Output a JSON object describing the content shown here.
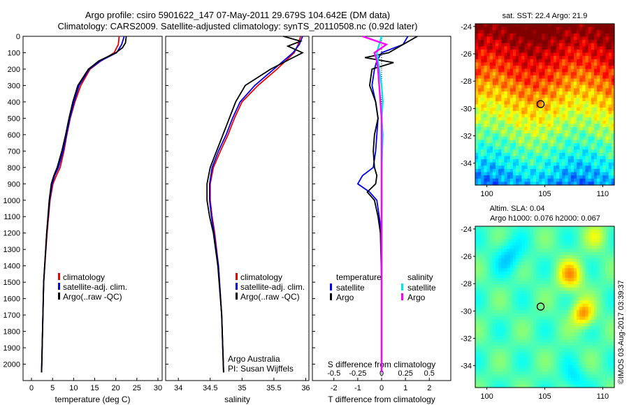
{
  "header": {
    "title_line1": "Argo profile: csiro 5901622_147 07-May-2011 29.679S 104.642E (DM data)",
    "title_line2": "Climatology: CARS2009. Satellite-adjusted climatology: synTS_20110508.nc (0.92d later)"
  },
  "chart_data": [
    {
      "type": "line",
      "xlabel": "temperature (deg C)",
      "xlim": [
        -2,
        31
      ],
      "ylim": [
        2100,
        0
      ],
      "xticks": [
        0,
        5,
        10,
        15,
        20,
        25,
        30
      ],
      "yticks": [
        0,
        100,
        200,
        300,
        400,
        500,
        600,
        700,
        800,
        900,
        1000,
        1100,
        1200,
        1300,
        1400,
        1500,
        1600,
        1700,
        1800,
        1900,
        2000
      ],
      "legend": [
        "climatology",
        "satellite-adj. clim.",
        "Argo(..raw -QC)"
      ],
      "colors": {
        "climatology": "#ee0000",
        "satellite": "#0000ee",
        "argo": "#000000"
      },
      "series": [
        {
          "name": "climatology",
          "y": [
            0,
            50,
            100,
            150,
            200,
            300,
            400,
            500,
            600,
            700,
            800,
            850,
            900,
            1000,
            1200,
            1500,
            2050
          ],
          "x": [
            20.8,
            20.6,
            19.6,
            16.5,
            13.9,
            11.7,
            10.3,
            9.2,
            8.4,
            7.7,
            6.8,
            5.9,
            5.1,
            4.4,
            3.7,
            2.9,
            2.4
          ]
        },
        {
          "name": "satellite-adj. clim.",
          "y": [
            0,
            50,
            100,
            150,
            200,
            300,
            400,
            500,
            600,
            700,
            800,
            850,
            900,
            1000,
            1200,
            1500,
            2050
          ],
          "x": [
            22.0,
            21.4,
            20.2,
            16.4,
            13.7,
            11.3,
            10.1,
            9.1,
            8.3,
            7.5,
            6.4,
            5.5,
            4.9,
            4.3,
            3.6,
            2.9,
            2.4
          ]
        },
        {
          "name": "Argo(..raw -QC)",
          "y": [
            0,
            40,
            70,
            100,
            150,
            200,
            300,
            400,
            500,
            600,
            700,
            800,
            850,
            900,
            1000,
            1200,
            1500,
            2050
          ],
          "x": [
            22.5,
            22.3,
            21.6,
            20.0,
            16.0,
            13.5,
            11.0,
            9.8,
            8.9,
            8.1,
            7.2,
            6.1,
            5.3,
            4.7,
            4.2,
            3.6,
            2.9,
            2.4
          ]
        }
      ]
    },
    {
      "type": "line",
      "xlabel": "salinity",
      "xlim": [
        33.8,
        36.05
      ],
      "ylim": [
        2100,
        0
      ],
      "xticks": [
        34,
        34.5,
        35,
        35.5,
        36
      ],
      "legend": [
        "climatology",
        "satellite-adj. clim.",
        "Argo(..raw -QC)"
      ],
      "annotation": [
        "Argo Australia",
        "PI: Susan Wijffels"
      ],
      "series": [
        {
          "name": "climatology",
          "y": [
            0,
            50,
            100,
            200,
            300,
            400,
            500,
            600,
            700,
            800,
            900,
            1000,
            1100,
            1200,
            1400,
            1700,
            2050
          ],
          "x": [
            35.92,
            35.88,
            35.82,
            35.55,
            35.25,
            35.0,
            34.88,
            34.78,
            34.66,
            34.55,
            34.5,
            34.5,
            34.53,
            34.57,
            34.63,
            34.68,
            34.71
          ]
        },
        {
          "name": "satellite-adj. clim.",
          "y": [
            0,
            50,
            100,
            200,
            300,
            400,
            500,
            600,
            700,
            800,
            900,
            1000,
            1100,
            1200,
            1400,
            1700,
            2050
          ],
          "x": [
            35.95,
            35.9,
            35.8,
            35.5,
            35.2,
            34.97,
            34.85,
            34.75,
            34.63,
            34.53,
            34.49,
            34.49,
            34.52,
            34.56,
            34.63,
            34.68,
            34.71
          ]
        },
        {
          "name": "Argo(..raw -QC)",
          "y": [
            0,
            30,
            60,
            100,
            130,
            200,
            300,
            400,
            500,
            600,
            700,
            800,
            900,
            1000,
            1100,
            1200,
            1400,
            1700,
            2050
          ],
          "x": [
            35.65,
            35.92,
            35.72,
            35.95,
            35.8,
            35.45,
            35.05,
            34.9,
            34.8,
            34.7,
            34.6,
            34.5,
            34.45,
            34.45,
            34.49,
            34.55,
            34.62,
            34.68,
            34.71
          ]
        }
      ]
    },
    {
      "type": "line",
      "xlabel": "T difference from climatology",
      "x2label": "S difference from climatology",
      "xlim": [
        -2.9,
        2.9
      ],
      "xticks": [
        -2,
        -1,
        0,
        1,
        2
      ],
      "x2ticks": [
        "-0.5",
        "-0.25",
        "0",
        "0.25",
        "0.5"
      ],
      "legend_temperature": {
        "title": "temperature",
        "items": [
          "satellite",
          "Argo"
        ]
      },
      "legend_salinity": {
        "title": "salinity",
        "items": [
          "satellite",
          "Argo"
        ]
      },
      "colors": {
        "t_satellite": "#0000ee",
        "t_argo": "#000000",
        "s_satellite": "#00e5ee",
        "s_argo": "#ff00ff"
      },
      "series": [
        {
          "name": "T satellite",
          "y": [
            0,
            50,
            100,
            150,
            200,
            300,
            400,
            500,
            600,
            700,
            800,
            850,
            900,
            950,
            1000,
            1100,
            1200,
            1500,
            2050
          ],
          "x": [
            1.1,
            0.9,
            0.0,
            -0.2,
            -0.3,
            -0.4,
            -0.25,
            -0.15,
            -0.2,
            -0.25,
            -0.35,
            -0.8,
            -1.0,
            -0.5,
            -0.2,
            -0.1,
            0.0,
            0.0,
            0.0
          ]
        },
        {
          "name": "T Argo",
          "y": [
            0,
            50,
            100,
            130,
            160,
            200,
            300,
            400,
            500,
            600,
            700,
            800,
            850,
            900,
            950,
            1000,
            1100,
            1200,
            1500,
            2050
          ],
          "x": [
            1.5,
            0.9,
            0.3,
            -0.7,
            0.5,
            -0.4,
            -0.5,
            -0.25,
            -0.15,
            -0.3,
            -0.35,
            -0.3,
            -0.2,
            -0.25,
            -0.6,
            -0.3,
            -0.15,
            -0.05,
            0.0,
            0.0
          ]
        },
        {
          "name": "S satellite",
          "y": [
            0,
            100,
            200,
            300,
            400,
            500,
            600,
            800,
            1000,
            1500,
            2050
          ],
          "x": [
            0.0,
            -0.2,
            -0.1,
            0.0,
            0.05,
            0.0,
            0.05,
            0.0,
            0.0,
            0.0,
            0.0
          ]
        },
        {
          "name": "S Argo",
          "y": [
            0,
            50,
            100,
            150,
            200,
            300,
            400,
            500,
            700,
            900,
            1000,
            1500,
            2050
          ],
          "x": [
            -0.8,
            0.2,
            -0.3,
            -0.2,
            -0.15,
            -0.1,
            -0.05,
            0.0,
            0.0,
            0.0,
            0.0,
            0.0,
            0.0
          ]
        }
      ]
    },
    {
      "type": "heatmap",
      "title": "sat. SST: 22.4  Argo: 21.9",
      "xlim": [
        99,
        111
      ],
      "ylim": [
        -35.6,
        -23.8
      ],
      "xticks": [
        100,
        105,
        110
      ],
      "yticks": [
        -24,
        -26,
        -28,
        -30,
        -32,
        -34
      ],
      "marker": {
        "lon": 104.642,
        "lat": -29.679
      }
    },
    {
      "type": "heatmap",
      "title": "Altim. SLA: 0.04",
      "subtitle": "Argo h1000: 0.076 h2000: 0.067",
      "xlim": [
        99,
        111
      ],
      "ylim": [
        -35.6,
        -23.8
      ],
      "xticks": [
        100,
        105,
        110
      ],
      "yticks": [
        -24,
        -26,
        -28,
        -30,
        -32,
        -34
      ],
      "marker": {
        "lon": 104.642,
        "lat": -29.679
      }
    }
  ],
  "footer": {
    "stamp": "©IMOS 03-Aug-2017 03:39:37"
  }
}
